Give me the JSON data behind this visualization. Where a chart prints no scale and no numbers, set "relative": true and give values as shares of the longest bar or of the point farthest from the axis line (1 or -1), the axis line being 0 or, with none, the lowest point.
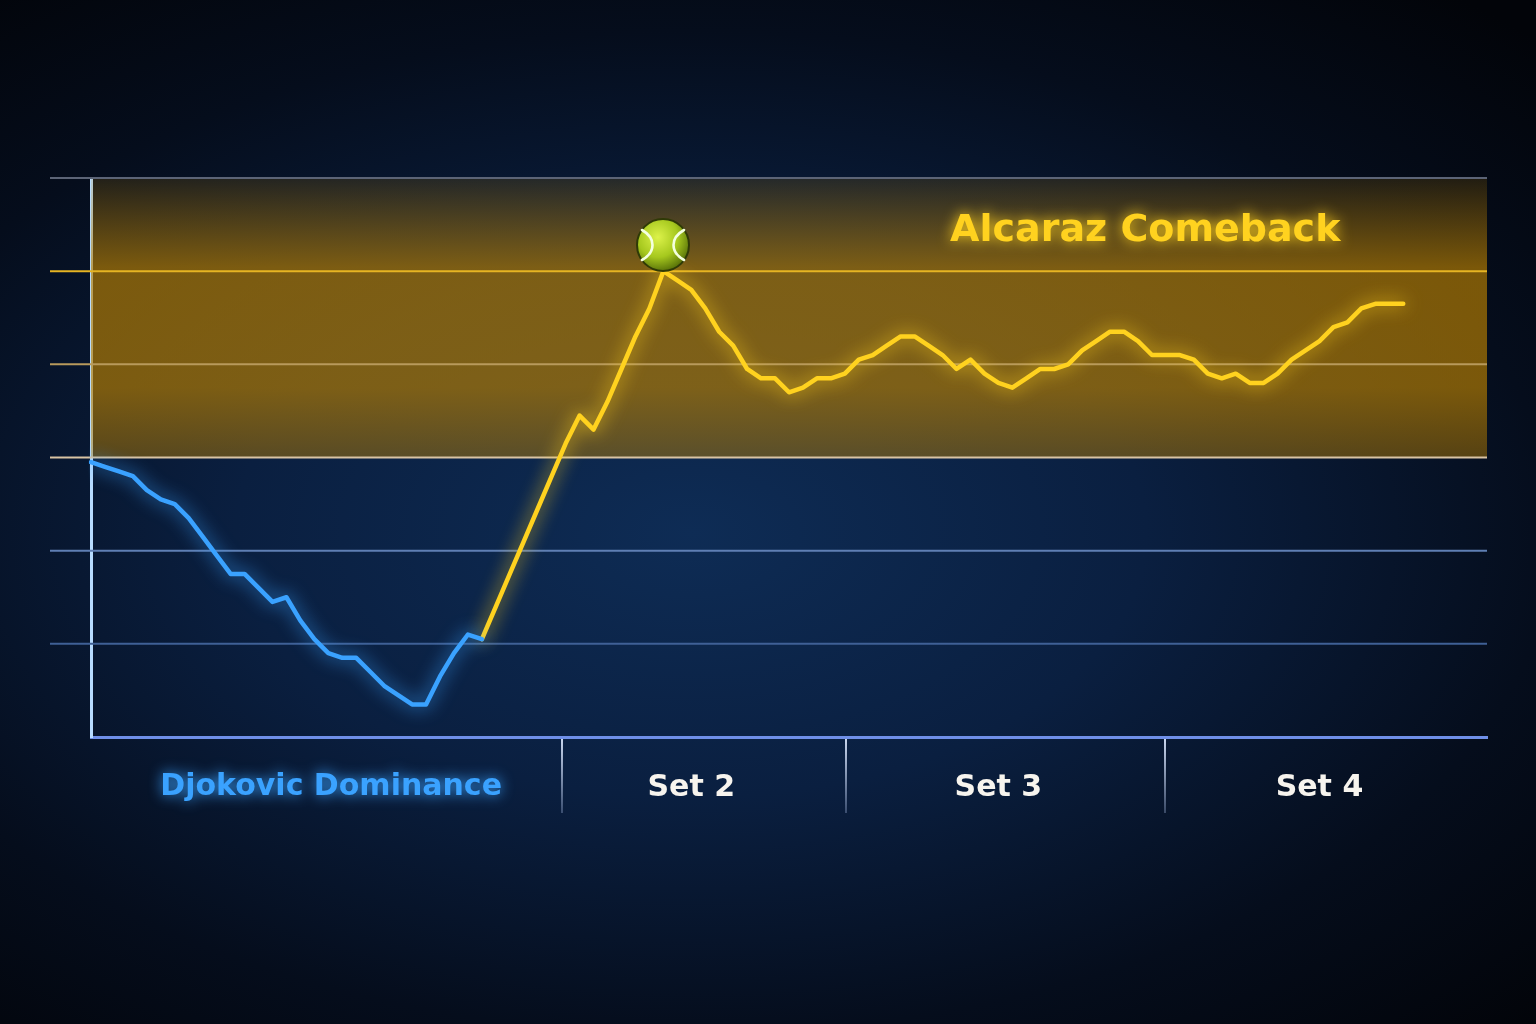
{
  "chart_data": {
    "type": "line",
    "relative": true,
    "tick_labels": "x",
    "line_style": "solid",
    "categories": [
      null,
      null,
      null,
      null,
      null,
      null,
      null,
      null,
      null,
      null,
      null,
      null,
      null,
      null,
      null,
      null,
      null,
      null,
      null,
      null,
      null,
      null,
      null,
      null,
      null,
      null,
      null,
      null,
      null,
      null,
      null,
      null,
      null,
      null,
      null,
      null,
      null,
      null,
      null,
      null,
      null,
      null,
      null,
      "Set 2",
      null,
      null,
      null,
      null,
      null,
      null,
      null,
      null,
      null,
      null,
      null,
      null,
      null,
      null,
      null,
      null,
      null,
      null,
      null,
      null,
      null,
      "Set 3",
      null,
      null,
      null,
      null,
      null,
      null,
      null,
      null,
      null,
      null,
      null,
      null,
      null,
      null,
      null,
      null,
      null,
      null,
      null,
      null,
      null,
      null,
      "Set 4",
      null,
      null,
      null,
      null,
      null,
      null,
      null,
      null,
      null,
      null,
      null,
      null
    ],
    "ref_lines": [
      {
        "axis": "y",
        "value": 0.2,
        "color": "#3f6096"
      },
      {
        "axis": "y",
        "value": 0.4,
        "color": "#5f7fb4"
      },
      {
        "axis": "y",
        "value": 0.6,
        "color": "#d9c4a4"
      },
      {
        "axis": "y",
        "value": 0.8,
        "color": "#b89a5c"
      },
      {
        "axis": "y",
        "value": 1.0,
        "color": "#e6b423"
      },
      {
        "axis": "y",
        "value": 1.2,
        "color": "#5c6476"
      }
    ],
    "bands": [
      {
        "axis": "y",
        "from": 0.6,
        "to": 1.2,
        "color": "#b87f00"
      }
    ],
    "series": [
      {
        "name": "Djokovic Dominance",
        "color": "#3aa2ff",
        "values": [
          0.59,
          0.58,
          0.57,
          0.56,
          0.53,
          0.51,
          0.5,
          0.47,
          0.43,
          0.39,
          0.35,
          0.35,
          0.32,
          0.29,
          0.3,
          0.25,
          0.21,
          0.18,
          0.17,
          0.17,
          0.14,
          0.11,
          0.09,
          0.07,
          0.07,
          0.13,
          0.18,
          0.22,
          0.21,
          null,
          null,
          null,
          null,
          null,
          null,
          null,
          null,
          null,
          null,
          null,
          null,
          null,
          null,
          null,
          null,
          null,
          null,
          null,
          null,
          null,
          null,
          null,
          null,
          null,
          null,
          null,
          null,
          null,
          null,
          null,
          null,
          null,
          null,
          null,
          null,
          null,
          null,
          null,
          null,
          null,
          null,
          null,
          null,
          null,
          null,
          null,
          null,
          null,
          null,
          null,
          null,
          null,
          null,
          null,
          null,
          null,
          null,
          null,
          null,
          null,
          null,
          null,
          null,
          null,
          null,
          null,
          null,
          null,
          null,
          null,
          null
        ]
      },
      {
        "name": "Alcaraz Comeback",
        "color": "#ffd21f",
        "values": [
          null,
          null,
          null,
          null,
          null,
          null,
          null,
          null,
          null,
          null,
          null,
          null,
          null,
          null,
          null,
          null,
          null,
          null,
          null,
          null,
          null,
          null,
          null,
          null,
          null,
          null,
          null,
          null,
          0.21,
          0.28,
          0.35,
          0.42,
          0.49,
          0.56,
          0.63,
          0.69,
          0.66,
          0.72,
          0.79,
          0.86,
          0.92,
          1,
          0.98,
          0.96,
          0.92,
          0.87,
          0.84,
          0.79,
          0.77,
          0.77,
          0.74,
          0.75,
          0.77,
          0.77,
          0.78,
          0.81,
          0.82,
          0.84,
          0.86,
          0.86,
          0.84,
          0.82,
          0.79,
          0.81,
          0.78,
          0.76,
          0.75,
          0.77,
          0.79,
          0.79,
          0.8,
          0.83,
          0.85,
          0.87,
          0.87,
          0.85,
          0.82,
          0.82,
          0.82,
          0.81,
          0.78,
          0.77,
          0.78,
          0.76,
          0.76,
          0.78,
          0.81,
          0.83,
          0.85,
          0.88,
          0.89,
          0.92,
          0.93,
          0.93,
          0.93,
          null,
          null,
          null,
          null,
          null,
          null
        ]
      }
    ]
  }
}
